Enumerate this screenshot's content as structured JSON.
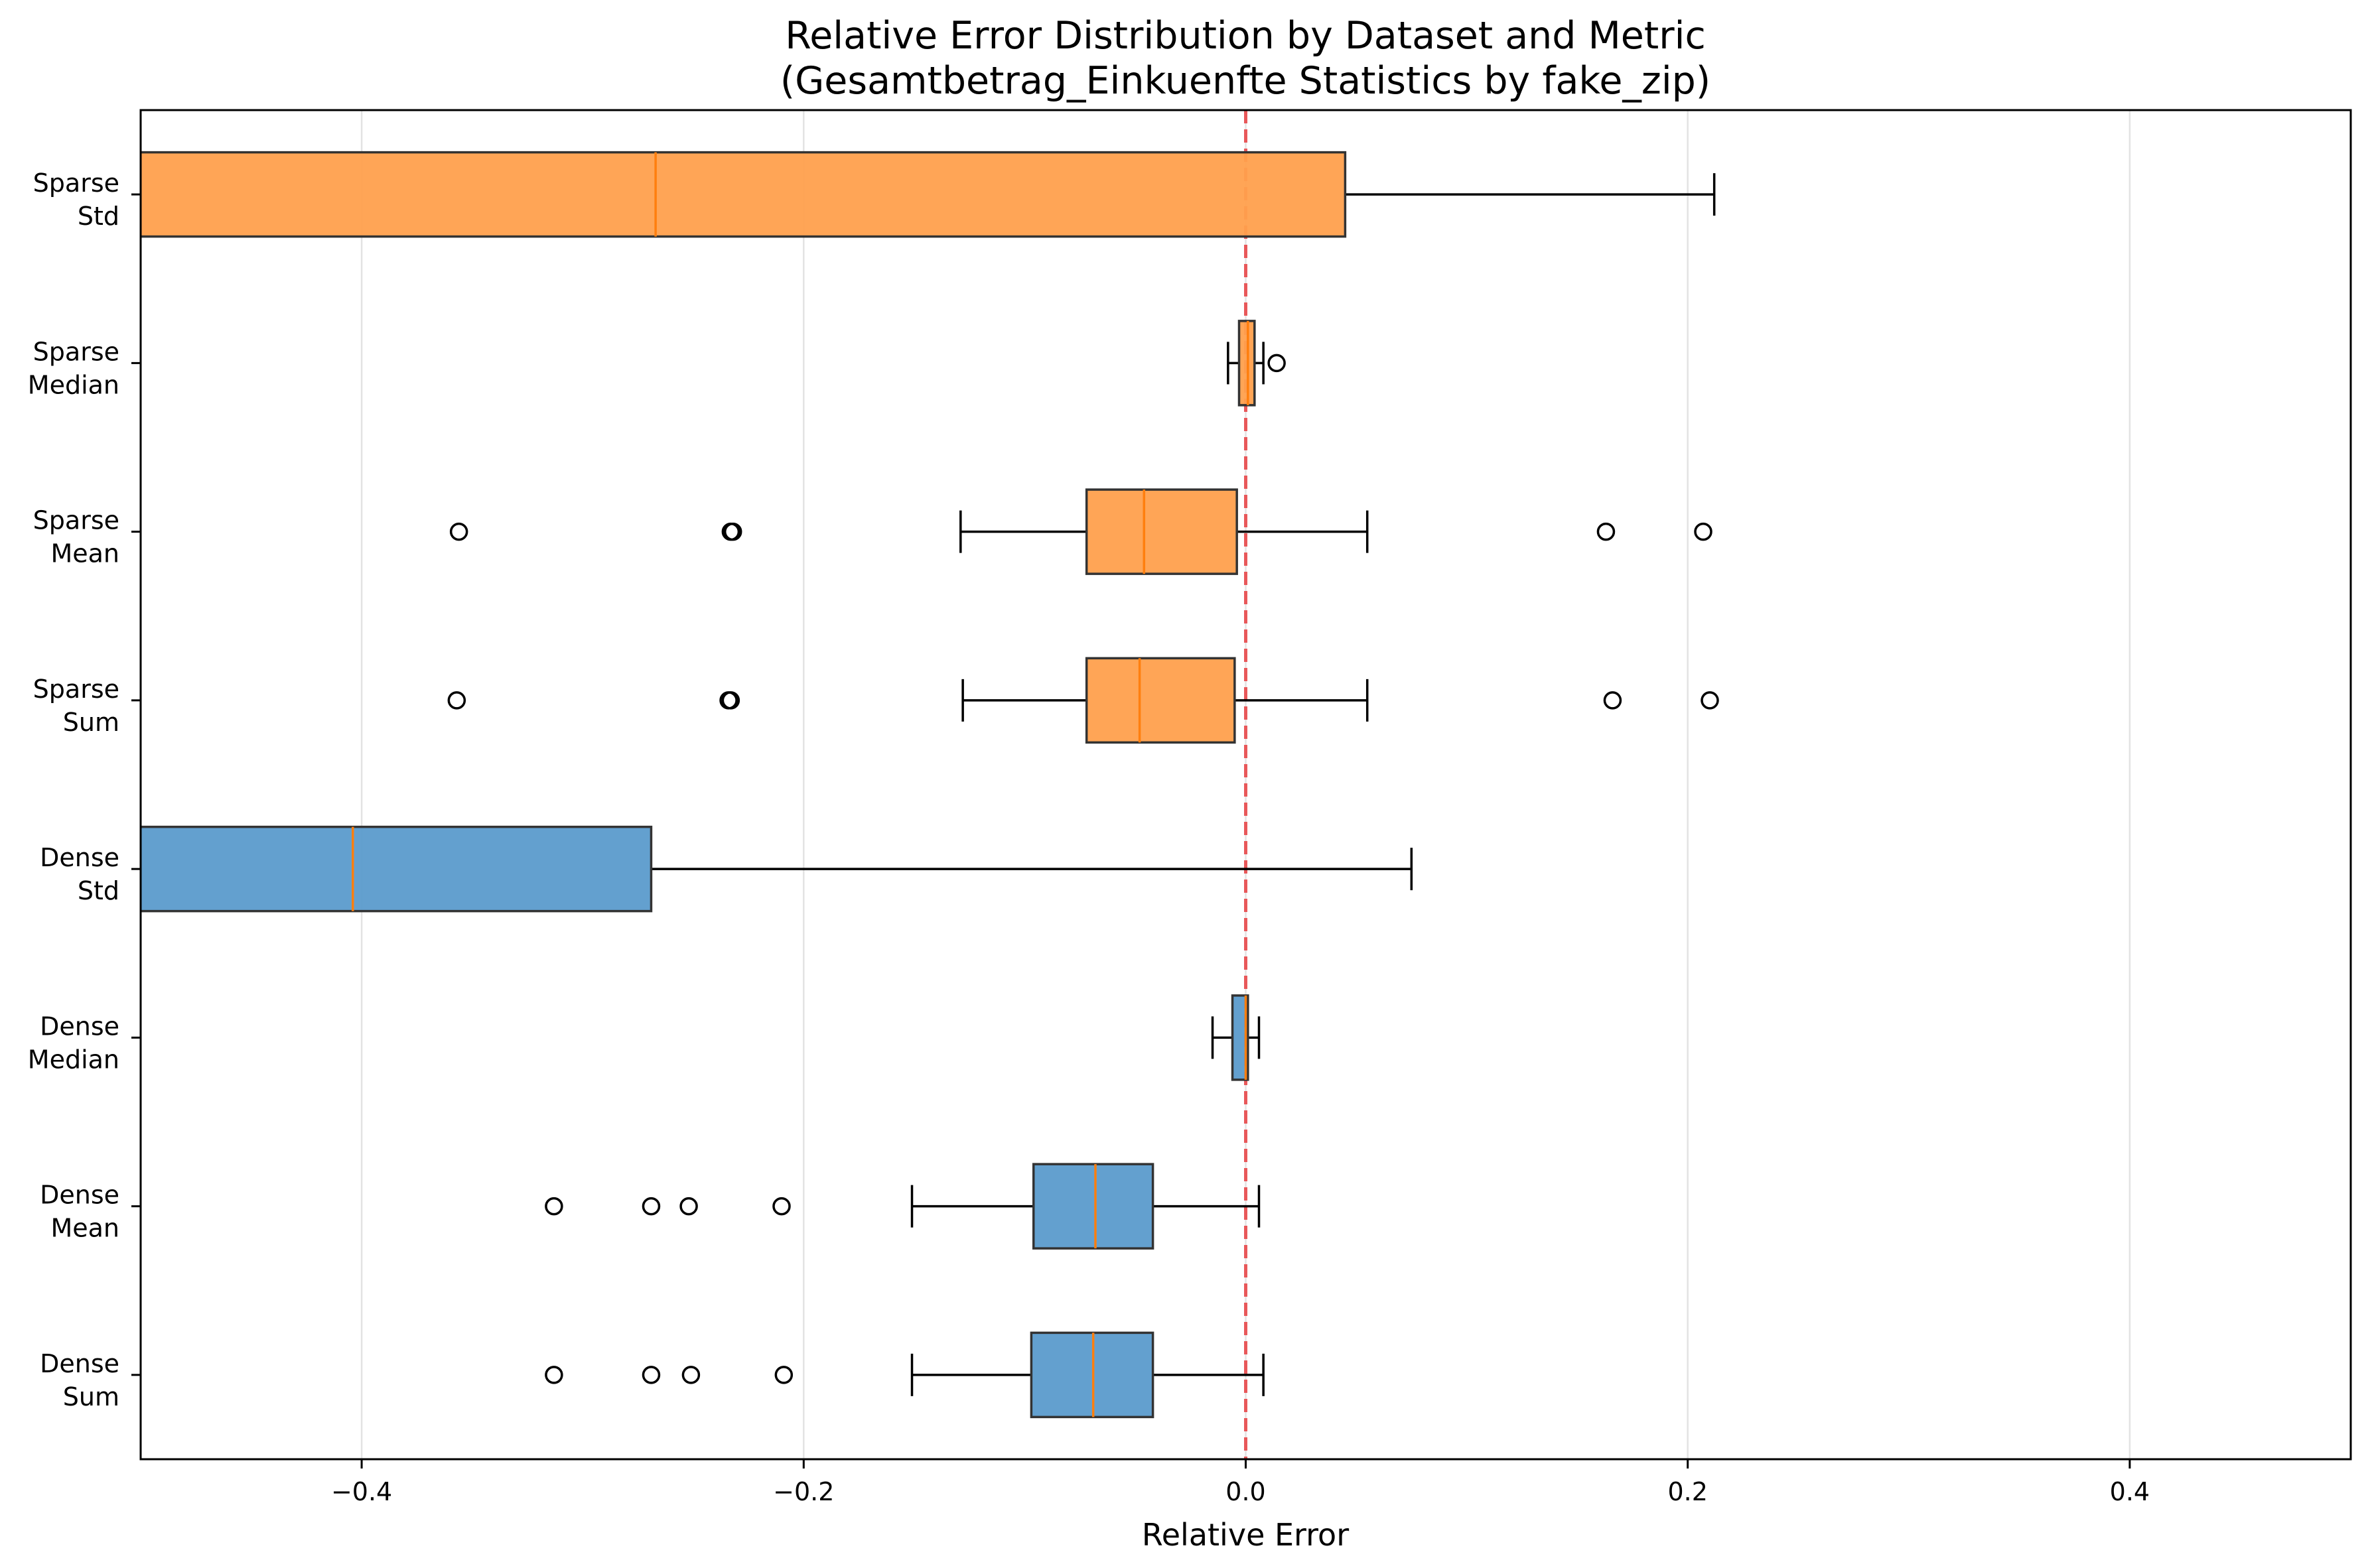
{
  "chart_data": {
    "type": "boxplot",
    "orientation": "horizontal",
    "title": "Relative Error Distribution by Dataset and Metric",
    "subtitle": "(Gesamtbetrag_Einkuenfte Statistics by fake_zip)",
    "xlabel": "Relative Error",
    "ylabel": "",
    "xlim": [
      -0.5,
      0.5
    ],
    "xticks": [
      -0.4,
      -0.2,
      0.0,
      0.2,
      0.4
    ],
    "xtick_labels": [
      "−0.4",
      "−0.2",
      "0.0",
      "0.2",
      "0.4"
    ],
    "grid": "vertical",
    "reference_line": {
      "x": 0.0,
      "color": "#e8585a",
      "style": "dashed"
    },
    "colors": {
      "Dense": "#5b9bcc",
      "Sparse": "#ffa04d",
      "median": "#ff7f0e"
    },
    "categories": [
      {
        "dataset": "Dense",
        "metric": "Sum",
        "q1": -0.097,
        "median": -0.069,
        "q3": -0.042,
        "whisker_low": -0.151,
        "whisker_high": 0.008,
        "outliers": [
          -0.313,
          -0.269,
          -0.251,
          -0.209
        ]
      },
      {
        "dataset": "Dense",
        "metric": "Mean",
        "q1": -0.096,
        "median": -0.068,
        "q3": -0.042,
        "whisker_low": -0.151,
        "whisker_high": 0.006,
        "outliers": [
          -0.313,
          -0.269,
          -0.252,
          -0.21
        ]
      },
      {
        "dataset": "Dense",
        "metric": "Median",
        "q1": -0.006,
        "median": 0.0,
        "q3": 0.001,
        "whisker_low": -0.015,
        "whisker_high": 0.006,
        "outliers": []
      },
      {
        "dataset": "Dense",
        "metric": "Std",
        "q1": -0.54,
        "median": -0.404,
        "q3": -0.269,
        "whisker_low": -0.6,
        "whisker_high": 0.075,
        "outliers": []
      },
      {
        "dataset": "Sparse",
        "metric": "Sum",
        "q1": -0.072,
        "median": -0.048,
        "q3": -0.005,
        "whisker_low": -0.128,
        "whisker_high": 0.055,
        "outliers": [
          -0.357,
          -0.234,
          -0.233,
          0.166,
          0.21
        ]
      },
      {
        "dataset": "Sparse",
        "metric": "Mean",
        "q1": -0.072,
        "median": -0.046,
        "q3": -0.004,
        "whisker_low": -0.129,
        "whisker_high": 0.055,
        "outliers": [
          -0.356,
          -0.233,
          -0.232,
          0.163,
          0.207
        ]
      },
      {
        "dataset": "Sparse",
        "metric": "Median",
        "q1": -0.003,
        "median": 0.001,
        "q3": 0.004,
        "whisker_low": -0.008,
        "whisker_high": 0.008,
        "outliers": [
          0.014
        ]
      },
      {
        "dataset": "Sparse",
        "metric": "Std",
        "q1": -0.53,
        "median": -0.267,
        "q3": 0.045,
        "whisker_low": -0.6,
        "whisker_high": 0.212,
        "outliers": []
      }
    ]
  }
}
